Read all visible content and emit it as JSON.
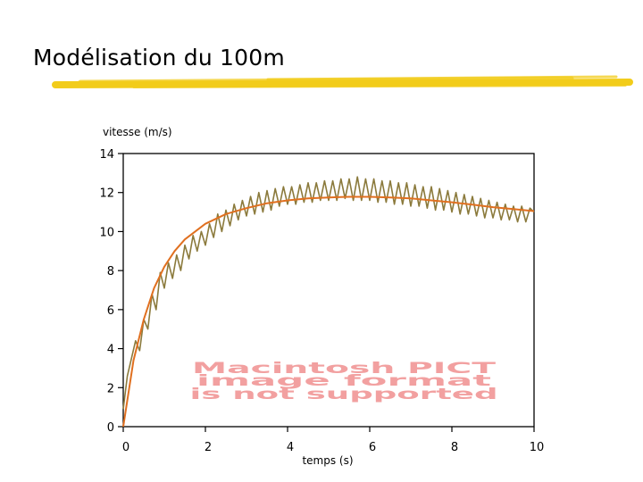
{
  "slide": {
    "title": "Modélisation du 100m",
    "title_color": "#000000",
    "underline_color": "#f2cc1a"
  },
  "placeholder": {
    "line1": "Macintosh PICT",
    "line2": "image format",
    "line3": "is not supported",
    "color": "#f2a0a0"
  },
  "chart_data": {
    "type": "line",
    "title": "",
    "xlabel": "temps (s)",
    "ylabel": "vitesse (m/s)",
    "xlim": [
      0,
      10
    ],
    "ylim": [
      0,
      14
    ],
    "xticks": [
      0,
      2,
      4,
      6,
      8,
      10
    ],
    "yticks": [
      0,
      2,
      4,
      6,
      8,
      10,
      12,
      14
    ],
    "grid": false,
    "legend": "none",
    "series": [
      {
        "role": "measured",
        "color": "#8b7a3c",
        "x": [
          0,
          0.1,
          0.2,
          0.3,
          0.4,
          0.5,
          0.6,
          0.7,
          0.8,
          0.9,
          1.0,
          1.1,
          1.2,
          1.3,
          1.4,
          1.5,
          1.6,
          1.7,
          1.8,
          1.9,
          2.0,
          2.1,
          2.2,
          2.3,
          2.4,
          2.5,
          2.6,
          2.7,
          2.8,
          2.9,
          3.0,
          3.1,
          3.2,
          3.3,
          3.4,
          3.5,
          3.6,
          3.7,
          3.8,
          3.9,
          4.0,
          4.1,
          4.2,
          4.3,
          4.4,
          4.5,
          4.6,
          4.7,
          4.8,
          4.9,
          5.0,
          5.1,
          5.2,
          5.3,
          5.4,
          5.5,
          5.6,
          5.7,
          5.8,
          5.9,
          6.0,
          6.1,
          6.2,
          6.3,
          6.4,
          6.5,
          6.6,
          6.7,
          6.8,
          6.9,
          7.0,
          7.1,
          7.2,
          7.3,
          7.4,
          7.5,
          7.6,
          7.7,
          7.8,
          7.9,
          8.0,
          8.1,
          8.2,
          8.3,
          8.4,
          8.5,
          8.6,
          8.7,
          8.8,
          8.9,
          9.0,
          9.1,
          9.2,
          9.3,
          9.4,
          9.5,
          9.6,
          9.7,
          9.8,
          9.9,
          10.0
        ],
        "y": [
          0.9,
          2.6,
          3.5,
          4.4,
          3.9,
          5.5,
          5.0,
          6.8,
          6.0,
          7.9,
          7.1,
          8.4,
          7.6,
          8.8,
          8.0,
          9.3,
          8.6,
          9.8,
          9.0,
          10.0,
          9.3,
          10.4,
          9.7,
          10.9,
          10.0,
          11.1,
          10.3,
          11.4,
          10.6,
          11.6,
          10.8,
          11.8,
          10.9,
          12.0,
          11.0,
          12.1,
          11.1,
          12.2,
          11.3,
          12.3,
          11.4,
          12.3,
          11.4,
          12.4,
          11.5,
          12.5,
          11.5,
          12.5,
          11.6,
          12.6,
          11.6,
          12.6,
          11.6,
          12.7,
          11.7,
          12.7,
          11.6,
          12.8,
          11.6,
          12.7,
          11.6,
          12.7,
          11.5,
          12.6,
          11.5,
          12.6,
          11.4,
          12.5,
          11.4,
          12.5,
          11.3,
          12.4,
          11.3,
          12.3,
          11.2,
          12.3,
          11.1,
          12.2,
          11.1,
          12.1,
          11.0,
          12.0,
          10.9,
          11.9,
          10.9,
          11.8,
          10.8,
          11.7,
          10.7,
          11.6,
          10.7,
          11.5,
          10.6,
          11.4,
          10.6,
          11.3,
          10.5,
          11.3,
          10.5,
          11.2,
          11.0
        ]
      },
      {
        "role": "model",
        "color": "#e07020",
        "x": [
          0,
          0.25,
          0.5,
          0.75,
          1.0,
          1.25,
          1.5,
          1.75,
          2.0,
          2.5,
          3.0,
          3.5,
          4.0,
          4.5,
          5.0,
          5.5,
          6.0,
          6.5,
          7.0,
          7.5,
          8.0,
          8.5,
          9.0,
          9.5,
          10.0
        ],
        "y": [
          0.0,
          3.4,
          5.5,
          7.1,
          8.2,
          9.0,
          9.6,
          10.0,
          10.4,
          10.9,
          11.2,
          11.45,
          11.6,
          11.7,
          11.75,
          11.78,
          11.78,
          11.75,
          11.7,
          11.6,
          11.5,
          11.38,
          11.25,
          11.15,
          11.05
        ]
      }
    ]
  }
}
